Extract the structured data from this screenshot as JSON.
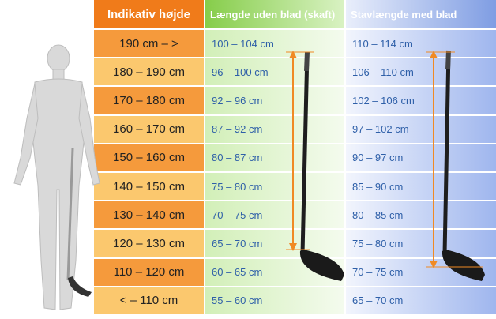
{
  "table": {
    "header": [
      "Indikativ højde",
      "Længde uden blad (skaft)",
      "Stavlængde med blad"
    ],
    "rows": [
      [
        "190 cm – >",
        "100 – 104 cm",
        "110 – 114 cm"
      ],
      [
        "180 – 190 cm",
        "96 – 100 cm",
        "106 – 110 cm"
      ],
      [
        "170 – 180 cm",
        "92 – 96 cm",
        "102 – 106 cm"
      ],
      [
        "160 – 170 cm",
        "87 – 92 cm",
        "97 – 102 cm"
      ],
      [
        "150 – 160 cm",
        "80 – 87 cm",
        "90 – 97 cm"
      ],
      [
        "140 – 150 cm",
        "75 – 80 cm",
        "85 – 90 cm"
      ],
      [
        "130 – 140 cm",
        "70 – 75 cm",
        "80 – 85 cm"
      ],
      [
        "120 – 130 cm",
        "65 – 70 cm",
        "75 – 80 cm"
      ],
      [
        "110 – 120 cm",
        "60 – 65 cm",
        "70 – 75 cm"
      ],
      [
        "< – 110 cm",
        "55 – 60 cm",
        "65 – 70 cm"
      ]
    ]
  }
}
